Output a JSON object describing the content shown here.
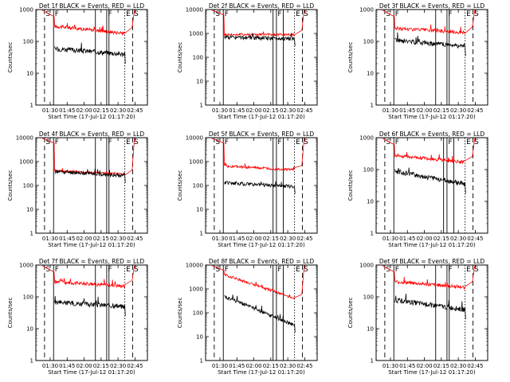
{
  "chart_data": [
    {
      "type": "line",
      "detector": "1f",
      "title": "Det 1f BLACK = Events, RED = LLD",
      "xlabel": "Start Time (17-Jul-12 01:17:20)",
      "ylabel": "Counts/sec",
      "x_ticks": [
        "01:30",
        "01:45",
        "02:00",
        "02:15",
        "02:30",
        "02:45"
      ],
      "y_ticks": [
        "1",
        "10",
        "100",
        "1000"
      ],
      "ylim": [
        1,
        1000
      ],
      "y_scale": "log",
      "xlim": [
        "01:17:20",
        "02:56:00"
      ],
      "events_level_start": 60,
      "events_level_end": 40,
      "lld_level_start": 300,
      "lld_level_end": 180,
      "markers": [
        {
          "time": "01:25",
          "style": "dashed",
          "label": "S"
        },
        {
          "time": "01:33",
          "style": "solid",
          "label": "F"
        },
        {
          "time": "02:10",
          "style": "solid",
          "label": ""
        },
        {
          "time": "02:20",
          "style": "solid",
          "label": "F"
        },
        {
          "time": "02:22",
          "style": "solid",
          "label": ""
        },
        {
          "time": "02:36",
          "style": "dotted",
          "label": "E"
        },
        {
          "time": "02:43",
          "style": "dashed",
          "label": "S"
        }
      ],
      "series": [
        {
          "name": "Events",
          "color": "#000000"
        },
        {
          "name": "LLD",
          "color": "#ff0000"
        }
      ]
    },
    {
      "type": "line",
      "detector": "2f",
      "title": "Det 2f BLACK = Events, RED = LLD",
      "xlabel": "Start Time (17-Jul-12 01:17:20)",
      "ylabel": "Counts/sec",
      "x_ticks": [
        "01:30",
        "01:45",
        "02:00",
        "02:15",
        "02:30",
        "02:45"
      ],
      "y_ticks": [
        "1",
        "10",
        "100",
        "1000",
        "10000"
      ],
      "ylim": [
        1,
        10000
      ],
      "y_scale": "log",
      "xlim": [
        "01:17:20",
        "02:56:00"
      ],
      "events_level_start": 700,
      "events_level_end": 600,
      "lld_level_start": 900,
      "lld_level_end": 900,
      "markers": [
        {
          "time": "01:25",
          "style": "dashed",
          "label": "S"
        },
        {
          "time": "01:33",
          "style": "solid",
          "label": "F"
        },
        {
          "time": "02:17",
          "style": "solid",
          "label": ""
        },
        {
          "time": "02:20",
          "style": "solid",
          "label": "F"
        },
        {
          "time": "02:26",
          "style": "solid",
          "label": ""
        },
        {
          "time": "02:36",
          "style": "dotted",
          "label": "E"
        },
        {
          "time": "02:43",
          "style": "dashed",
          "label": "S"
        }
      ],
      "series": [
        {
          "name": "Events",
          "color": "#000000"
        },
        {
          "name": "LLD",
          "color": "#ff0000"
        }
      ]
    },
    {
      "type": "line",
      "detector": "3f",
      "title": "Det 3f BLACK = Events, RED = LLD",
      "xlabel": "Start Time (17-Jul-12 01:17:20)",
      "ylabel": "Counts/sec",
      "x_ticks": [
        "01:30",
        "01:45",
        "02:00",
        "02:15",
        "02:30",
        "02:45"
      ],
      "y_ticks": [
        "1",
        "10",
        "100",
        "1000"
      ],
      "ylim": [
        1,
        1000
      ],
      "y_scale": "log",
      "xlim": [
        "01:17:20",
        "02:56:00"
      ],
      "events_level_start": 110,
      "events_level_end": 70,
      "lld_level_start": 260,
      "lld_level_end": 190,
      "markers": [
        {
          "time": "01:25",
          "style": "dashed",
          "label": "S"
        },
        {
          "time": "01:33",
          "style": "solid",
          "label": "F"
        },
        {
          "time": "02:10",
          "style": "solid",
          "label": ""
        },
        {
          "time": "02:20",
          "style": "solid",
          "label": "F"
        },
        {
          "time": "02:22",
          "style": "solid",
          "label": ""
        },
        {
          "time": "02:36",
          "style": "dotted",
          "label": "E"
        },
        {
          "time": "02:43",
          "style": "dashed",
          "label": "S"
        }
      ],
      "series": [
        {
          "name": "Events",
          "color": "#000000"
        },
        {
          "name": "LLD",
          "color": "#ff0000"
        }
      ]
    },
    {
      "type": "line",
      "detector": "4f",
      "title": "Det 4f BLACK = Events, RED = LLD",
      "xlabel": "Start Time (17-Jul-12 01:17:20)",
      "ylabel": "Counts/sec",
      "x_ticks": [
        "01:30",
        "01:45",
        "02:00",
        "02:15",
        "02:30",
        "02:45"
      ],
      "y_ticks": [
        "1",
        "10",
        "100",
        "1000",
        "10000"
      ],
      "ylim": [
        1,
        10000
      ],
      "y_scale": "log",
      "xlim": [
        "01:17:20",
        "02:56:00"
      ],
      "events_level_start": 380,
      "events_level_end": 260,
      "lld_level_start": 420,
      "lld_level_end": 290,
      "markers": [
        {
          "time": "01:25",
          "style": "dashed",
          "label": "S"
        },
        {
          "time": "01:33",
          "style": "solid",
          "label": "F"
        },
        {
          "time": "02:10",
          "style": "solid",
          "label": ""
        },
        {
          "time": "02:20",
          "style": "solid",
          "label": "F"
        },
        {
          "time": "02:22",
          "style": "solid",
          "label": ""
        },
        {
          "time": "02:36",
          "style": "dotted",
          "label": "E"
        },
        {
          "time": "02:43",
          "style": "dashed",
          "label": "S"
        }
      ],
      "series": [
        {
          "name": "Events",
          "color": "#000000"
        },
        {
          "name": "LLD",
          "color": "#ff0000"
        }
      ]
    },
    {
      "type": "line",
      "detector": "5f",
      "title": "Det 5f BLACK = Events, RED = LLD",
      "xlabel": "Start Time (17-Jul-12 01:17:20)",
      "ylabel": "Counts/sec",
      "x_ticks": [
        "01:30",
        "01:45",
        "02:00",
        "02:15",
        "02:30",
        "02:45"
      ],
      "y_ticks": [
        "1",
        "10",
        "100",
        "1000",
        "10000"
      ],
      "ylim": [
        1,
        10000
      ],
      "y_scale": "log",
      "xlim": [
        "01:17:20",
        "02:56:00"
      ],
      "events_level_start": 130,
      "events_level_end": 90,
      "lld_level_start": 650,
      "lld_level_end": 450,
      "markers": [
        {
          "time": "01:25",
          "style": "dashed",
          "label": "S"
        },
        {
          "time": "01:33",
          "style": "solid",
          "label": "F"
        },
        {
          "time": "02:17",
          "style": "solid",
          "label": ""
        },
        {
          "time": "02:20",
          "style": "solid",
          "label": "F"
        },
        {
          "time": "02:26",
          "style": "solid",
          "label": ""
        },
        {
          "time": "02:36",
          "style": "dotted",
          "label": "E"
        },
        {
          "time": "02:43",
          "style": "dashed",
          "label": "S"
        }
      ],
      "series": [
        {
          "name": "Events",
          "color": "#000000"
        },
        {
          "name": "LLD",
          "color": "#ff0000"
        }
      ]
    },
    {
      "type": "line",
      "detector": "6f",
      "title": "Det 6f BLACK = Events, RED = LLD",
      "xlabel": "Start Time (17-Jul-12 01:17:20)",
      "ylabel": "Counts/sec",
      "x_ticks": [
        "01:30",
        "01:45",
        "02:00",
        "02:15",
        "02:30",
        "02:45"
      ],
      "y_ticks": [
        "1",
        "10",
        "100",
        "1000"
      ],
      "ylim": [
        1,
        1000
      ],
      "y_scale": "log",
      "xlim": [
        "01:17:20",
        "02:56:00"
      ],
      "events_level_start": 90,
      "events_level_end": 35,
      "lld_level_start": 280,
      "lld_level_end": 170,
      "markers": [
        {
          "time": "01:25",
          "style": "dashed",
          "label": "S"
        },
        {
          "time": "01:33",
          "style": "solid",
          "label": "F"
        },
        {
          "time": "02:17",
          "style": "solid",
          "label": ""
        },
        {
          "time": "02:20",
          "style": "solid",
          "label": "F"
        },
        {
          "time": "02:26",
          "style": "solid",
          "label": ""
        },
        {
          "time": "02:36",
          "style": "dotted",
          "label": "E"
        },
        {
          "time": "02:43",
          "style": "dashed",
          "label": "S"
        }
      ],
      "series": [
        {
          "name": "Events",
          "color": "#000000"
        },
        {
          "name": "LLD",
          "color": "#ff0000"
        }
      ]
    },
    {
      "type": "line",
      "detector": "7f",
      "title": "Det 7f BLACK = Events, RED = LLD",
      "xlabel": "Start Time (17-Jul-12 01:17:20)",
      "ylabel": "Counts/sec",
      "x_ticks": [
        "01:30",
        "01:45",
        "02:00",
        "02:15",
        "02:30",
        "02:45"
      ],
      "y_ticks": [
        "1",
        "10",
        "100",
        "1000"
      ],
      "ylim": [
        1,
        1000
      ],
      "y_scale": "log",
      "xlim": [
        "01:17:20",
        "02:56:00"
      ],
      "events_level_start": 70,
      "events_level_end": 50,
      "lld_level_start": 300,
      "lld_level_end": 220,
      "markers": [
        {
          "time": "01:25",
          "style": "dashed",
          "label": "S"
        },
        {
          "time": "01:33",
          "style": "solid",
          "label": "F"
        },
        {
          "time": "02:10",
          "style": "solid",
          "label": ""
        },
        {
          "time": "02:20",
          "style": "solid",
          "label": "F"
        },
        {
          "time": "02:22",
          "style": "solid",
          "label": ""
        },
        {
          "time": "02:36",
          "style": "dotted",
          "label": "E"
        },
        {
          "time": "02:43",
          "style": "dashed",
          "label": "S"
        }
      ],
      "series": [
        {
          "name": "Events",
          "color": "#000000"
        },
        {
          "name": "LLD",
          "color": "#ff0000"
        }
      ]
    },
    {
      "type": "line",
      "detector": "8f",
      "title": "Det 8f BLACK = Events, RED = LLD",
      "xlabel": "Start Time (17-Jul-12 01:17:20)",
      "ylabel": "Counts/sec",
      "x_ticks": [
        "01:30",
        "01:45",
        "02:00",
        "02:15",
        "02:30",
        "02:45"
      ],
      "y_ticks": [
        "1",
        "10",
        "100",
        "1000",
        "10000"
      ],
      "ylim": [
        1,
        10000
      ],
      "y_scale": "log",
      "xlim": [
        "01:17:20",
        "02:56:00"
      ],
      "events_level_start": 500,
      "events_level_end": 30,
      "lld_level_start": 4000,
      "lld_level_end": 400,
      "markers": [
        {
          "time": "01:25",
          "style": "dashed",
          "label": "S"
        },
        {
          "time": "01:33",
          "style": "solid",
          "label": "F"
        },
        {
          "time": "02:17",
          "style": "solid",
          "label": ""
        },
        {
          "time": "02:20",
          "style": "solid",
          "label": "F"
        },
        {
          "time": "02:26",
          "style": "solid",
          "label": ""
        },
        {
          "time": "02:36",
          "style": "dotted",
          "label": "E"
        },
        {
          "time": "02:43",
          "style": "dashed",
          "label": "S"
        }
      ],
      "series": [
        {
          "name": "Events",
          "color": "#000000"
        },
        {
          "name": "LLD",
          "color": "#ff0000"
        }
      ]
    },
    {
      "type": "line",
      "detector": "9f",
      "title": "Det 9f BLACK = Events, RED = LLD",
      "xlabel": "Start Time (17-Jul-12 01:17:20)",
      "ylabel": "Counts/sec",
      "x_ticks": [
        "01:30",
        "01:45",
        "02:00",
        "02:15",
        "02:30",
        "02:45"
      ],
      "y_ticks": [
        "1",
        "10",
        "100",
        "1000"
      ],
      "ylim": [
        1,
        1000
      ],
      "y_scale": "log",
      "xlim": [
        "01:17:20",
        "02:56:00"
      ],
      "events_level_start": 80,
      "events_level_end": 40,
      "lld_level_start": 300,
      "lld_level_end": 200,
      "markers": [
        {
          "time": "01:25",
          "style": "dashed",
          "label": "S"
        },
        {
          "time": "01:33",
          "style": "solid",
          "label": "F"
        },
        {
          "time": "02:10",
          "style": "solid",
          "label": ""
        },
        {
          "time": "02:20",
          "style": "solid",
          "label": "F"
        },
        {
          "time": "02:22",
          "style": "solid",
          "label": ""
        },
        {
          "time": "02:36",
          "style": "dotted",
          "label": "E"
        },
        {
          "time": "02:43",
          "style": "dashed",
          "label": "S"
        }
      ],
      "series": [
        {
          "name": "Events",
          "color": "#000000"
        },
        {
          "name": "LLD",
          "color": "#ff0000"
        }
      ]
    }
  ]
}
